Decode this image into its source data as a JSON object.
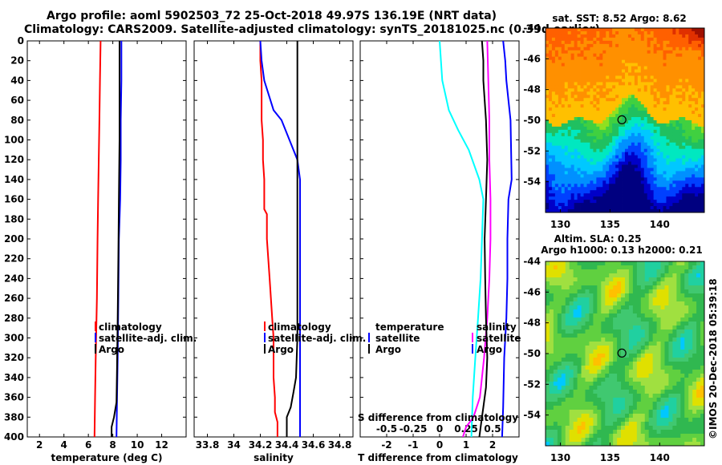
{
  "titles": {
    "line1": "Argo profile: aoml 5902503_72 25-Oct-2018 49.97S 136.19E (NRT data)",
    "line2": "Climatology: CARS2009. Satellite-adjusted climatology: synTS_20181025.nc (0.39d earlier)"
  },
  "colors": {
    "climatology": "#ff0000",
    "satellite": "#0000ff",
    "argo": "#000000",
    "t_diff": "#00ffff",
    "s_diff": "#ff00ff"
  },
  "chart_data": [
    {
      "type": "line",
      "id": "temperature",
      "xlabel": "temperature (deg C)",
      "ylabel": "",
      "xlim": [
        1,
        14
      ],
      "ylim": [
        400,
        0
      ],
      "xticks": [
        2,
        4,
        6,
        8,
        10,
        12
      ],
      "yticks": [
        0,
        20,
        40,
        60,
        80,
        100,
        120,
        140,
        160,
        180,
        200,
        220,
        240,
        260,
        280,
        300,
        320,
        340,
        360,
        380,
        400
      ],
      "legend": [
        "climatology",
        "satellite-adj. clim.",
        "Argo"
      ],
      "series": [
        {
          "name": "climatology",
          "color": "#ff0000",
          "x": [
            7.0,
            6.95,
            6.9,
            6.85,
            6.8,
            6.75,
            6.7,
            6.6,
            6.55,
            6.5
          ],
          "y": [
            0,
            40,
            80,
            120,
            160,
            200,
            260,
            320,
            360,
            400
          ]
        },
        {
          "name": "satellite-adj. clim.",
          "color": "#0000ff",
          "x": [
            8.7,
            8.7,
            8.65,
            8.65,
            8.6,
            8.5,
            8.45,
            8.4,
            8.35,
            8.3
          ],
          "y": [
            0,
            40,
            80,
            120,
            160,
            200,
            260,
            320,
            360,
            400
          ]
        },
        {
          "name": "Argo",
          "color": "#000000",
          "x": [
            8.55,
            8.55,
            8.55,
            8.5,
            8.45,
            8.4,
            8.35,
            8.3,
            8.1,
            7.9,
            7.9
          ],
          "y": [
            0,
            40,
            100,
            160,
            220,
            280,
            330,
            365,
            380,
            390,
            400
          ]
        }
      ]
    },
    {
      "type": "line",
      "id": "salinity",
      "xlabel": "salinity",
      "ylabel": "",
      "xlim": [
        33.7,
        34.9
      ],
      "ylim": [
        400,
        0
      ],
      "xticks": [
        33.8,
        34,
        34.2,
        34.4,
        34.6,
        34.8
      ],
      "legend": [
        "climatology",
        "satellite-adj. clim.",
        "Argo"
      ],
      "series": [
        {
          "name": "climatology",
          "color": "#ff0000",
          "x": [
            34.2,
            34.2,
            34.21,
            34.21,
            34.21,
            34.22,
            34.22,
            34.23,
            34.23,
            34.23,
            34.25,
            34.25,
            34.26,
            34.27,
            34.28,
            34.29,
            34.3,
            34.3,
            34.31,
            34.31,
            34.33,
            34.33
          ],
          "y": [
            0,
            20,
            40,
            60,
            80,
            100,
            120,
            140,
            160,
            170,
            175,
            200,
            220,
            240,
            260,
            280,
            300,
            340,
            360,
            375,
            385,
            400
          ]
        },
        {
          "name": "satellite-adj. clim.",
          "color": "#0000ff",
          "x": [
            34.2,
            34.21,
            34.23,
            34.3,
            34.36,
            34.42,
            34.48,
            34.5,
            34.5,
            34.5,
            34.5,
            34.5,
            34.5,
            34.5,
            34.5
          ],
          "y": [
            0,
            20,
            40,
            70,
            80,
            100,
            120,
            140,
            160,
            200,
            260,
            320,
            360,
            380,
            400
          ]
        },
        {
          "name": "Argo",
          "color": "#000000",
          "x": [
            34.48,
            34.48,
            34.48,
            34.48,
            34.48,
            34.48,
            34.47,
            34.45,
            34.43,
            34.4,
            34.4
          ],
          "y": [
            0,
            60,
            120,
            180,
            240,
            300,
            340,
            355,
            370,
            380,
            400
          ]
        }
      ]
    },
    {
      "type": "line",
      "id": "difference",
      "xlabel": "T difference from climatology",
      "x2label": "S difference from climatology",
      "xlim": [
        -3,
        3
      ],
      "x2lim": [
        -0.75,
        0.75
      ],
      "ylim": [
        400,
        0
      ],
      "xticks": [
        -2,
        -1,
        0,
        1,
        2
      ],
      "x2ticks": [
        -0.5,
        -0.25,
        0,
        0.25,
        0.5
      ],
      "legend_left_title": "temperature",
      "legend_right_title": "salinity",
      "legend": [
        "satellite",
        "Argo"
      ],
      "series": [
        {
          "name": "T satellite",
          "color": "#00ffff",
          "axis": "T",
          "x": [
            0.0,
            0.1,
            0.35,
            0.7,
            1.1,
            1.5,
            1.65,
            1.6,
            1.55,
            1.45,
            1.35,
            1.25,
            1.2
          ],
          "y": [
            0,
            40,
            70,
            90,
            110,
            140,
            160,
            200,
            240,
            280,
            320,
            360,
            400
          ]
        },
        {
          "name": "S satellite",
          "color": "#ff00ff",
          "axis": "S",
          "x": [
            0.45,
            0.46,
            0.47,
            0.47,
            0.48,
            0.48,
            0.47,
            0.45,
            0.42,
            0.38,
            0.32,
            0.25,
            0.22
          ],
          "y": [
            0,
            40,
            80,
            120,
            160,
            200,
            240,
            280,
            320,
            360,
            380,
            390,
            400
          ]
        },
        {
          "name": "T Argo",
          "color": "#000000",
          "axis": "T",
          "x": [
            1.6,
            1.65,
            1.65,
            1.75,
            1.8,
            1.75,
            1.7,
            1.72,
            1.75,
            1.8,
            1.75,
            1.65,
            1.6,
            1.5
          ],
          "y": [
            0,
            20,
            40,
            80,
            120,
            160,
            200,
            240,
            280,
            320,
            350,
            370,
            380,
            400
          ]
        },
        {
          "name": "S Argo",
          "color": "#0000ff",
          "axis": "S",
          "x": [
            0.6,
            0.62,
            0.63,
            0.65,
            0.67,
            0.68,
            0.65,
            0.64,
            0.64,
            0.63,
            0.61,
            0.6,
            0.59
          ],
          "y": [
            0,
            20,
            40,
            60,
            80,
            140,
            160,
            200,
            240,
            280,
            320,
            370,
            400
          ]
        }
      ]
    },
    {
      "type": "heatmap",
      "id": "sst_map",
      "title": "sat. SST: 8.52 Argo: 8.62",
      "xlim": [
        128.5,
        144.5
      ],
      "ylim": [
        -56,
        -44
      ],
      "xticks": [
        130,
        135,
        140
      ],
      "yticks": [
        -44,
        -46,
        -48,
        -50,
        -52,
        -54
      ],
      "marker": {
        "lon": 136.19,
        "lat": -49.97
      }
    },
    {
      "type": "heatmap",
      "id": "sla_map",
      "title1": "Altim. SLA: 0.25",
      "title2": "Argo h1000: 0.13 h2000: 0.21",
      "xlim": [
        128.5,
        144.5
      ],
      "ylim": [
        -56,
        -44
      ],
      "xticks": [
        130,
        135,
        140
      ],
      "yticks": [
        -44,
        -46,
        -48,
        -50,
        -52,
        -54
      ],
      "marker": {
        "lon": 136.19,
        "lat": -49.97
      }
    }
  ],
  "legend_labels": {
    "climatology": "climatology",
    "satellite_adj": "satellite-adj. clim.",
    "argo": "Argo",
    "temperature": "temperature",
    "salinity": "salinity",
    "satellite": "satellite"
  },
  "credit": "©IMOS 20-Dec-2018 05:39:18"
}
